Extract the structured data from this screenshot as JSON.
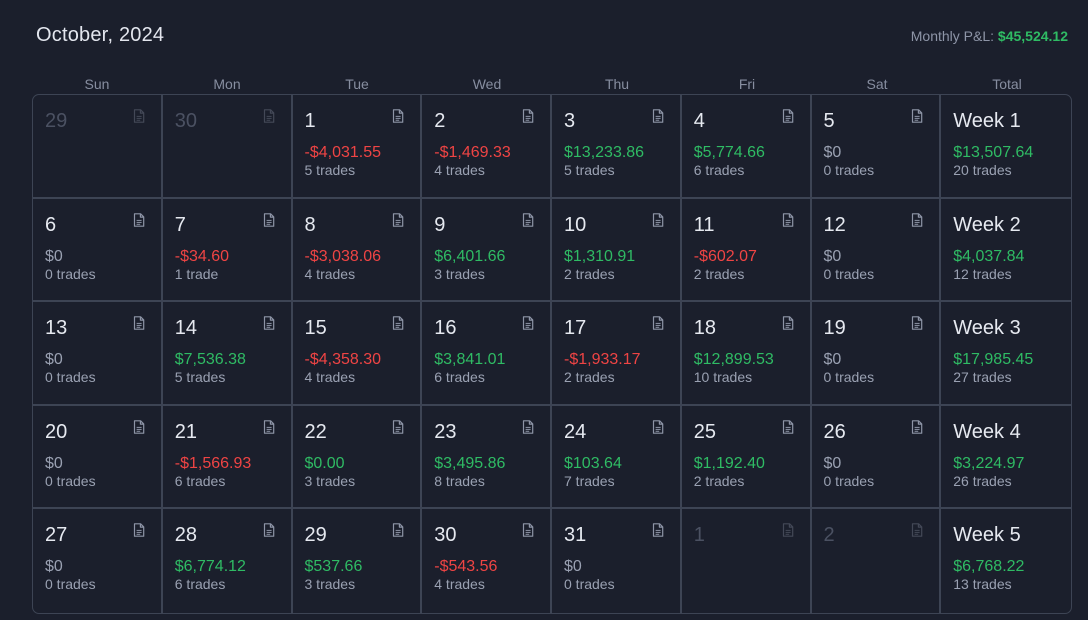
{
  "header": {
    "month_title": "October, 2024",
    "monthly_pnl_label": "Monthly P&L:",
    "monthly_pnl_value": "$45,524.12"
  },
  "weekdays": [
    "Sun",
    "Mon",
    "Tue",
    "Wed",
    "Thu",
    "Fri",
    "Sat",
    "Total"
  ],
  "colors": {
    "positive": "#2fbb64",
    "negative": "#ef4444",
    "neutral": "#9aa1b2",
    "background": "#1b1f2c",
    "border": "#3d4454"
  },
  "icon": "document-icon",
  "weeks": [
    {
      "days": [
        {
          "day": "29",
          "outside": true
        },
        {
          "day": "30",
          "outside": true
        },
        {
          "day": "1",
          "pnl": "-$4,031.55",
          "sign": "neg",
          "trades": "5 trades"
        },
        {
          "day": "2",
          "pnl": "-$1,469.33",
          "sign": "neg",
          "trades": "4 trades"
        },
        {
          "day": "3",
          "pnl": "$13,233.86",
          "sign": "pos",
          "trades": "5 trades"
        },
        {
          "day": "4",
          "pnl": "$5,774.66",
          "sign": "pos",
          "trades": "6 trades"
        },
        {
          "day": "5",
          "pnl": "$0",
          "sign": "zero",
          "trades": "0 trades"
        }
      ],
      "total": {
        "label": "Week 1",
        "pnl": "$13,507.64",
        "sign": "pos",
        "trades": "20 trades"
      }
    },
    {
      "days": [
        {
          "day": "6",
          "pnl": "$0",
          "sign": "zero",
          "trades": "0 trades"
        },
        {
          "day": "7",
          "pnl": "-$34.60",
          "sign": "neg",
          "trades": "1 trade"
        },
        {
          "day": "8",
          "pnl": "-$3,038.06",
          "sign": "neg",
          "trades": "4 trades"
        },
        {
          "day": "9",
          "pnl": "$6,401.66",
          "sign": "pos",
          "trades": "3 trades"
        },
        {
          "day": "10",
          "pnl": "$1,310.91",
          "sign": "pos",
          "trades": "2 trades"
        },
        {
          "day": "11",
          "pnl": "-$602.07",
          "sign": "neg",
          "trades": "2 trades"
        },
        {
          "day": "12",
          "pnl": "$0",
          "sign": "zero",
          "trades": "0 trades"
        }
      ],
      "total": {
        "label": "Week 2",
        "pnl": "$4,037.84",
        "sign": "pos",
        "trades": "12 trades"
      }
    },
    {
      "days": [
        {
          "day": "13",
          "pnl": "$0",
          "sign": "zero",
          "trades": "0 trades"
        },
        {
          "day": "14",
          "pnl": "$7,536.38",
          "sign": "pos",
          "trades": "5 trades"
        },
        {
          "day": "15",
          "pnl": "-$4,358.30",
          "sign": "neg",
          "trades": "4 trades"
        },
        {
          "day": "16",
          "pnl": "$3,841.01",
          "sign": "pos",
          "trades": "6 trades"
        },
        {
          "day": "17",
          "pnl": "-$1,933.17",
          "sign": "neg",
          "trades": "2 trades"
        },
        {
          "day": "18",
          "pnl": "$12,899.53",
          "sign": "pos",
          "trades": "10 trades"
        },
        {
          "day": "19",
          "pnl": "$0",
          "sign": "zero",
          "trades": "0 trades"
        }
      ],
      "total": {
        "label": "Week 3",
        "pnl": "$17,985.45",
        "sign": "pos",
        "trades": "27 trades"
      }
    },
    {
      "days": [
        {
          "day": "20",
          "pnl": "$0",
          "sign": "zero",
          "trades": "0 trades"
        },
        {
          "day": "21",
          "pnl": "-$1,566.93",
          "sign": "neg",
          "trades": "6 trades"
        },
        {
          "day": "22",
          "pnl": "$0.00",
          "sign": "pos",
          "trades": "3 trades"
        },
        {
          "day": "23",
          "pnl": "$3,495.86",
          "sign": "pos",
          "trades": "8 trades"
        },
        {
          "day": "24",
          "pnl": "$103.64",
          "sign": "pos",
          "trades": "7 trades"
        },
        {
          "day": "25",
          "pnl": "$1,192.40",
          "sign": "pos",
          "trades": "2 trades"
        },
        {
          "day": "26",
          "pnl": "$0",
          "sign": "zero",
          "trades": "0 trades"
        }
      ],
      "total": {
        "label": "Week 4",
        "pnl": "$3,224.97",
        "sign": "pos",
        "trades": "26 trades"
      }
    },
    {
      "days": [
        {
          "day": "27",
          "pnl": "$0",
          "sign": "zero",
          "trades": "0 trades"
        },
        {
          "day": "28",
          "pnl": "$6,774.12",
          "sign": "pos",
          "trades": "6 trades"
        },
        {
          "day": "29",
          "pnl": "$537.66",
          "sign": "pos",
          "trades": "3 trades"
        },
        {
          "day": "30",
          "pnl": "-$543.56",
          "sign": "neg",
          "trades": "4 trades"
        },
        {
          "day": "31",
          "pnl": "$0",
          "sign": "zero",
          "trades": "0 trades"
        },
        {
          "day": "1",
          "outside": true
        },
        {
          "day": "2",
          "outside": true
        }
      ],
      "total": {
        "label": "Week 5",
        "pnl": "$6,768.22",
        "sign": "pos",
        "trades": "13 trades"
      }
    }
  ]
}
